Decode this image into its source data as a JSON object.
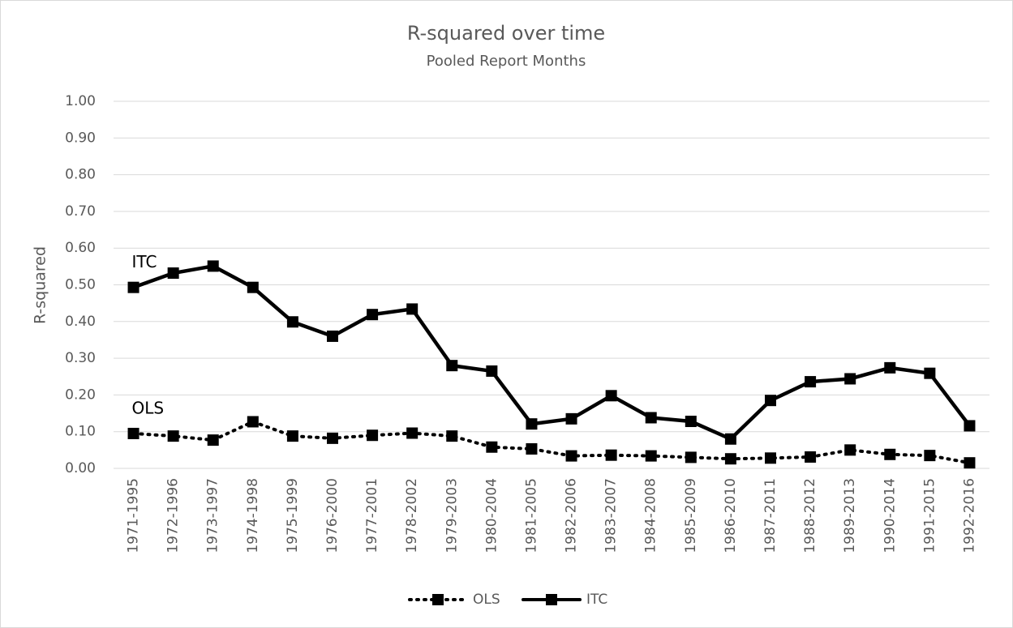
{
  "chart_data": {
    "type": "line",
    "title": "R-squared over time",
    "subtitle": "Pooled Report Months",
    "y_label": "R-squared",
    "categories": [
      "1971-1995",
      "1972-1996",
      "1973-1997",
      "1974-1998",
      "1975-1999",
      "1976-2000",
      "1977-2001",
      "1978-2002",
      "1979-2003",
      "1980-2004",
      "1981-2005",
      "1982-2006",
      "1983-2007",
      "1984-2008",
      "1985-2009",
      "1986-2010",
      "1987-2011",
      "1988-2012",
      "1989-2013",
      "1990-2014",
      "1991-2015",
      "1992-2016"
    ],
    "series": [
      {
        "name": "OLS",
        "color": "#000000",
        "dash": "dotted",
        "values": [
          0.095,
          0.088,
          0.077,
          0.127,
          0.088,
          0.082,
          0.09,
          0.096,
          0.088,
          0.058,
          0.053,
          0.034,
          0.036,
          0.034,
          0.03,
          0.026,
          0.028,
          0.031,
          0.05,
          0.038,
          0.035,
          0.015
        ]
      },
      {
        "name": "ITC",
        "color": "#000000",
        "dash": "solid",
        "values": [
          0.493,
          0.532,
          0.551,
          0.493,
          0.399,
          0.36,
          0.419,
          0.434,
          0.28,
          0.265,
          0.121,
          0.135,
          0.198,
          0.138,
          0.128,
          0.08,
          0.185,
          0.236,
          0.244,
          0.274,
          0.259,
          0.116
        ]
      }
    ],
    "annotations": [
      {
        "text": "OLS",
        "series": 0
      },
      {
        "text": "ITC",
        "series": 1
      }
    ],
    "ylim": [
      0,
      1
    ],
    "yticks": [
      {
        "value": 0,
        "label": "0.00"
      },
      {
        "value": 0.1,
        "label": "0.10"
      },
      {
        "value": 0.2,
        "label": "0.20"
      },
      {
        "value": 0.3,
        "label": "0.30"
      },
      {
        "value": 0.4,
        "label": "0.40"
      },
      {
        "value": 0.5,
        "label": "0.50"
      },
      {
        "value": 0.6,
        "label": "0.60"
      },
      {
        "value": 0.7,
        "label": "0.70"
      },
      {
        "value": 0.8,
        "label": "0.80"
      },
      {
        "value": 0.9,
        "label": "0.90"
      },
      {
        "value": 1,
        "label": "1.00"
      }
    ],
    "grid": true,
    "legend": "bottom"
  }
}
